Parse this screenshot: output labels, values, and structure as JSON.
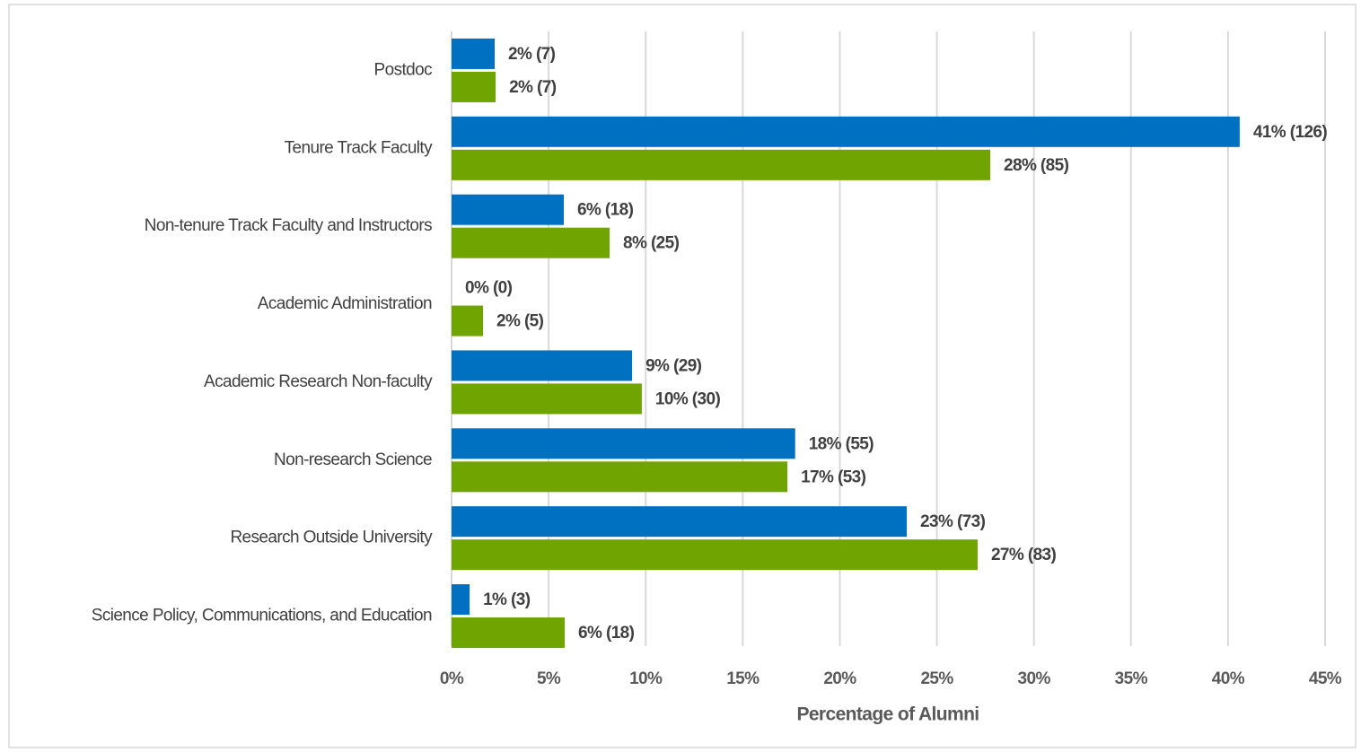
{
  "chart_data": {
    "type": "bar",
    "orientation": "horizontal",
    "categories": [
      "Postdoc",
      "Tenure Track Faculty",
      "Non-tenure Track Faculty and Instructors",
      "Academic Administration",
      "Academic Research Non-faculty",
      "Non-research Science",
      "Research Outside University",
      "Science Policy, Communications, and Education"
    ],
    "series": [
      {
        "color": "#0070c0",
        "values": [
          2.22,
          40.6,
          5.78,
          0,
          9.3,
          17.7,
          23.45,
          0.93
        ],
        "value_labels": [
          "2% (7)",
          "41% (126)",
          "6% (18)",
          "0% (0)",
          "9% (29)",
          "18% (55)",
          "23% (73)",
          "1% (3)"
        ]
      },
      {
        "color": "#70a400",
        "values": [
          2.27,
          27.75,
          8.14,
          1.62,
          9.8,
          17.3,
          27.1,
          5.83
        ],
        "value_labels": [
          "2% (7)",
          "28% (85)",
          "8% (25)",
          "2% (5)",
          "10% (30)",
          "17% (53)",
          "27% (83)",
          "6% (18)"
        ]
      }
    ],
    "xlabel": "Percentage of Alumni",
    "xlim": [
      0,
      45
    ],
    "xticks": [
      {
        "value": 0,
        "label": "0%"
      },
      {
        "value": 5,
        "label": "5%"
      },
      {
        "value": 10,
        "label": "10%"
      },
      {
        "value": 15,
        "label": "15%"
      },
      {
        "value": 20,
        "label": "20%"
      },
      {
        "value": 25,
        "label": "25%"
      },
      {
        "value": 30,
        "label": "30%"
      },
      {
        "value": 35,
        "label": "35%"
      },
      {
        "value": 40,
        "label": "40%"
      },
      {
        "value": 45,
        "label": "45%"
      }
    ],
    "grid": true
  }
}
